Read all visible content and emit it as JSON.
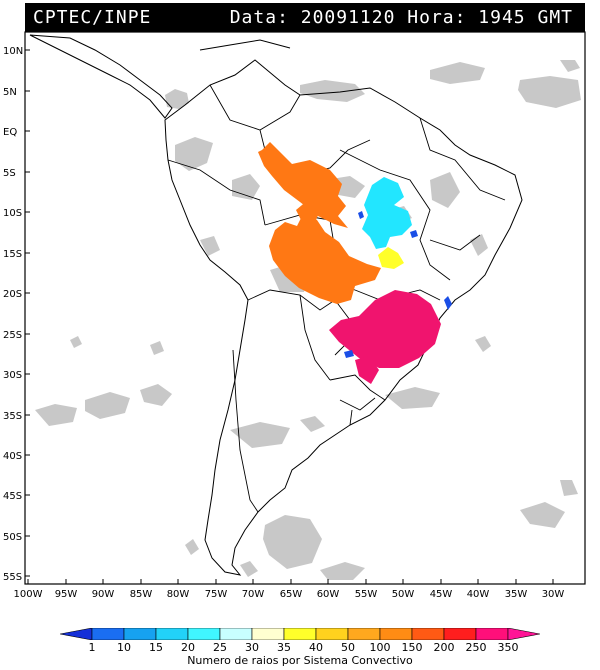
{
  "header": {
    "source": "CPTEC/INPE",
    "datetime": "Data: 20091120 Hora: 1945 GMT"
  },
  "axes": {
    "lat_labels": [
      "10N",
      "5N",
      "EQ",
      "5S",
      "10S",
      "15S",
      "20S",
      "25S",
      "30S",
      "35S",
      "40S",
      "45S",
      "50S",
      "55S"
    ],
    "lon_labels": [
      "100W",
      "95W",
      "90W",
      "85W",
      "80W",
      "75W",
      "70W",
      "65W",
      "60W",
      "55W",
      "50W",
      "45W",
      "40W",
      "35W",
      "30W"
    ]
  },
  "legend": {
    "title": "Numero de raios por Sistema Convectivo",
    "labels": [
      "1",
      "10",
      "15",
      "20",
      "25",
      "30",
      "35",
      "40",
      "50",
      "100",
      "150",
      "200",
      "250",
      "350"
    ],
    "colors": [
      "#1530d8",
      "#1a6ef2",
      "#16a2f0",
      "#22d2f8",
      "#40f6ff",
      "#c8ffff",
      "#ffffd0",
      "#ffff2a",
      "#ffd21e",
      "#ffa81e",
      "#ff8c14",
      "#ff5a14",
      "#ff1e1e",
      "#ff0f7a",
      "#ff1496"
    ]
  },
  "systems": [
    {
      "color": "orange",
      "hex": "#ff7814"
    },
    {
      "color": "cyan",
      "hex": "#22e6ff"
    },
    {
      "color": "yellow",
      "hex": "#ffff2a"
    },
    {
      "color": "magenta",
      "hex": "#f0146e"
    },
    {
      "color": "blue",
      "hex": "#1a4ee6"
    }
  ]
}
